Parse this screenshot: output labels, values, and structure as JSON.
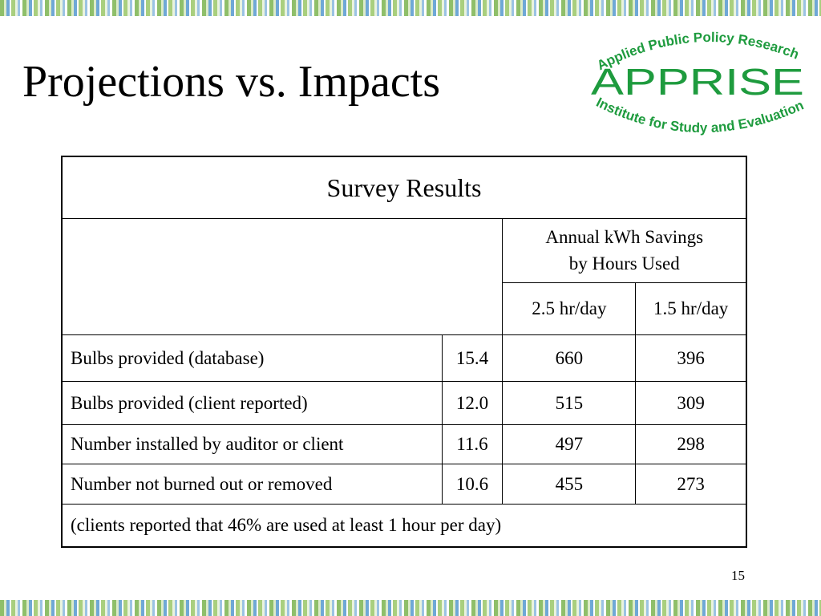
{
  "slide": {
    "title": "Projections vs. Impacts",
    "page_number": "15"
  },
  "logo": {
    "top_text": "Applied Public Policy Research",
    "main_text": "APPRISE",
    "bottom_text": "Institute for Study and Evaluation",
    "color": "#1e9b3e"
  },
  "table": {
    "caption": "Survey Results",
    "group_header": [
      "Annual kWh Savings",
      "by Hours Used"
    ],
    "subheaders": [
      "2.5 hr/day",
      "1.5 hr/day"
    ],
    "rows": [
      {
        "label": "Bulbs provided (database)",
        "count": "15.4",
        "kwh_25": "660",
        "kwh_15": "396"
      },
      {
        "label": "Bulbs provided (client reported)",
        "count": "12.0",
        "kwh_25": "515",
        "kwh_15": "309"
      },
      {
        "label": "Number installed by auditor or client",
        "count": "11.6",
        "kwh_25": "497",
        "kwh_15": "298"
      },
      {
        "label": "Number not burned out or removed",
        "count": "10.6",
        "kwh_25": "455",
        "kwh_15": "273"
      }
    ],
    "footnote": "(clients reported that 46% are used at least 1 hour per day)"
  }
}
